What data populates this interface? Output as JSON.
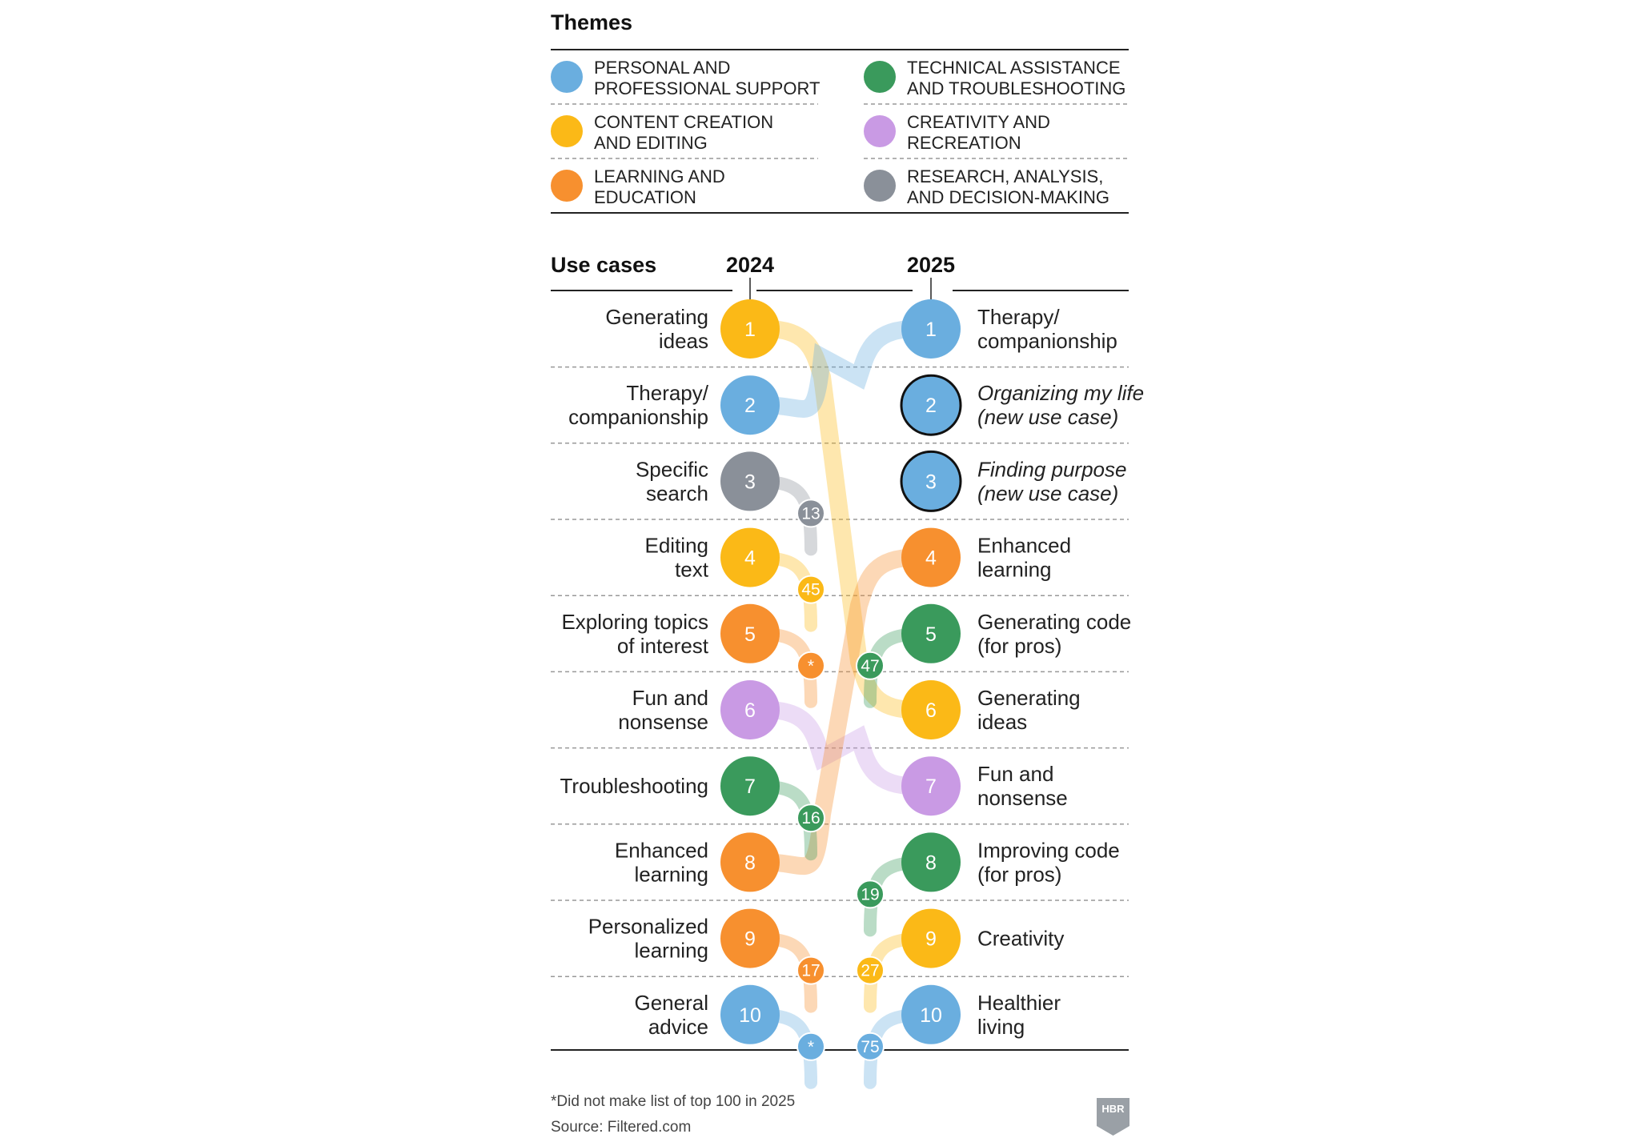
{
  "themes_title": "Themes",
  "use_cases_title": "Use cases",
  "year_left": "2024",
  "year_right": "2025",
  "footnote": "*Did not make list of top 100 in 2025",
  "source": "Source: Filtered.com",
  "logo_text": "HBR",
  "themes": [
    {
      "key": "personal",
      "lines": [
        "PERSONAL AND",
        "PROFESSIONAL SUPPORT"
      ],
      "color": "#6aaedf"
    },
    {
      "key": "technical",
      "lines": [
        "TECHNICAL ASSISTANCE",
        "AND TROUBLESHOOTING"
      ],
      "color": "#3a9a5c"
    },
    {
      "key": "content",
      "lines": [
        "CONTENT CREATION",
        "AND EDITING"
      ],
      "color": "#fbb917"
    },
    {
      "key": "creativity",
      "lines": [
        "CREATIVITY AND",
        "RECREATION"
      ],
      "color": "#c99ae4"
    },
    {
      "key": "learning",
      "lines": [
        "LEARNING AND",
        "EDUCATION"
      ],
      "color": "#f7902f"
    },
    {
      "key": "research",
      "lines": [
        "RESEARCH, ANALYSIS,",
        "AND DECISION-MAKING"
      ],
      "color": "#8a9099"
    }
  ],
  "chart_data": {
    "type": "slope",
    "title": "Use cases",
    "x": [
      "2024",
      "2025"
    ],
    "left": [
      {
        "rank": 1,
        "lines": [
          "Generating",
          "ideas"
        ],
        "theme": "content",
        "rank_2025": "6"
      },
      {
        "rank": 2,
        "lines": [
          "Therapy/",
          "companionship"
        ],
        "theme": "personal",
        "rank_2025": "1"
      },
      {
        "rank": 3,
        "lines": [
          "Specific",
          "search"
        ],
        "theme": "research",
        "rank_2025": "13"
      },
      {
        "rank": 4,
        "lines": [
          "Editing",
          "text"
        ],
        "theme": "content",
        "rank_2025": "45"
      },
      {
        "rank": 5,
        "lines": [
          "Exploring topics",
          "of interest"
        ],
        "theme": "learning",
        "rank_2025": "*"
      },
      {
        "rank": 6,
        "lines": [
          "Fun and",
          "nonsense"
        ],
        "theme": "creativity",
        "rank_2025": "7"
      },
      {
        "rank": 7,
        "lines": [
          "Troubleshooting"
        ],
        "theme": "technical",
        "rank_2025": "16"
      },
      {
        "rank": 8,
        "lines": [
          "Enhanced",
          "learning"
        ],
        "theme": "learning",
        "rank_2025": "4"
      },
      {
        "rank": 9,
        "lines": [
          "Personalized",
          "learning"
        ],
        "theme": "learning",
        "rank_2025": "17"
      },
      {
        "rank": 10,
        "lines": [
          "General",
          "advice"
        ],
        "theme": "personal",
        "rank_2025": "*"
      }
    ],
    "right": [
      {
        "rank": 1,
        "lines": [
          "Therapy/",
          "companionship"
        ],
        "theme": "personal",
        "rank_2024": "2",
        "new": false
      },
      {
        "rank": 2,
        "lines": [
          "Organizing my life",
          "(new use case)"
        ],
        "theme": "personal",
        "rank_2024": "",
        "new": true
      },
      {
        "rank": 3,
        "lines": [
          "Finding purpose",
          "(new use case)"
        ],
        "theme": "personal",
        "rank_2024": "",
        "new": true
      },
      {
        "rank": 4,
        "lines": [
          "Enhanced",
          "learning"
        ],
        "theme": "learning",
        "rank_2024": "8",
        "new": false
      },
      {
        "rank": 5,
        "lines": [
          "Generating code",
          "(for pros)"
        ],
        "theme": "technical",
        "rank_2024": "47",
        "new": false
      },
      {
        "rank": 6,
        "lines": [
          "Generating",
          "ideas"
        ],
        "theme": "content",
        "rank_2024": "1",
        "new": false
      },
      {
        "rank": 7,
        "lines": [
          "Fun and",
          "nonsense"
        ],
        "theme": "creativity",
        "rank_2024": "6",
        "new": false
      },
      {
        "rank": 8,
        "lines": [
          "Improving code",
          "(for pros)"
        ],
        "theme": "technical",
        "rank_2024": "19",
        "new": false
      },
      {
        "rank": 9,
        "lines": [
          "Creativity"
        ],
        "theme": "content",
        "rank_2024": "27",
        "new": false
      },
      {
        "rank": 10,
        "lines": [
          "Healthier",
          "living"
        ],
        "theme": "personal",
        "rank_2024": "75",
        "new": false
      }
    ]
  }
}
